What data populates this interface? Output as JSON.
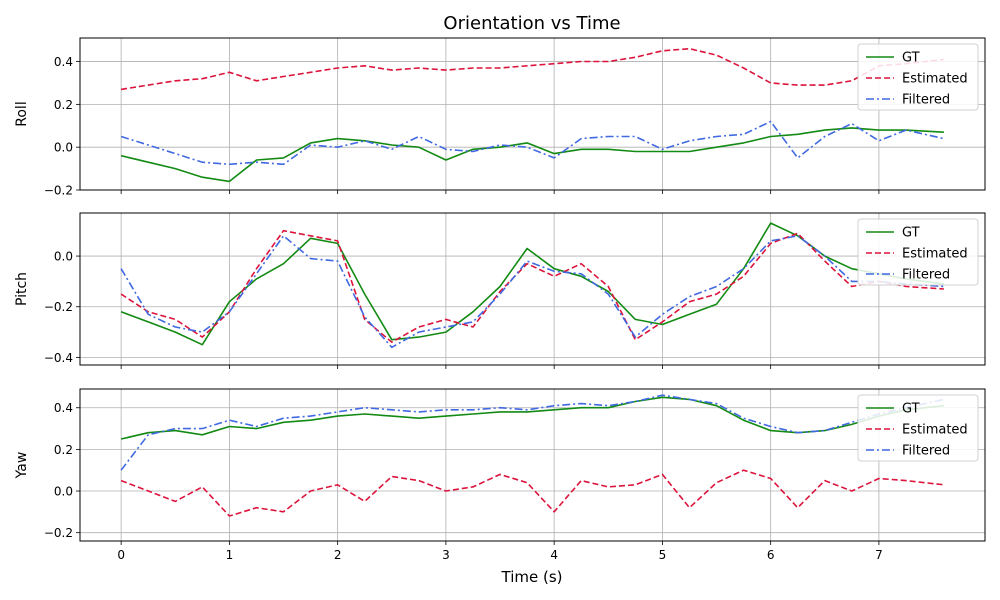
{
  "figure": {
    "title": "Orientation vs Time",
    "xlabel": "Time (s)",
    "legend_labels": [
      "GT",
      "Estimated",
      "Filtered"
    ]
  },
  "colors": {
    "GT": "#138a13",
    "Estimated": "#dc143c",
    "Filtered": "#4169e1"
  },
  "chart_data": [
    {
      "type": "line",
      "panel": "Roll",
      "ylabel": "Roll",
      "xlim": [
        -0.38,
        7.98
      ],
      "ylim": [
        -0.2,
        0.51
      ],
      "x_ticks": [
        0,
        1,
        2,
        3,
        4,
        5,
        6,
        7
      ],
      "x_tick_labels": [
        "0",
        "1",
        "2",
        "3",
        "4",
        "5",
        "6",
        "7"
      ],
      "y_ticks": [
        -0.2,
        0.0,
        0.2,
        0.4
      ],
      "y_tick_labels": [
        "−0.2",
        "0.0",
        "0.2",
        "0.4"
      ],
      "show_x_tick_labels": false,
      "grid": true,
      "legend_position": "upper-right",
      "x": [
        0.0,
        0.25,
        0.5,
        0.75,
        1.0,
        1.25,
        1.5,
        1.75,
        2.0,
        2.25,
        2.5,
        2.75,
        3.0,
        3.25,
        3.5,
        3.75,
        4.0,
        4.25,
        4.5,
        4.75,
        5.0,
        5.25,
        5.5,
        5.75,
        6.0,
        6.25,
        6.5,
        6.75,
        7.0,
        7.25,
        7.6
      ],
      "series": [
        {
          "name": "GT",
          "style": "solid",
          "values": [
            -0.04,
            -0.07,
            -0.1,
            -0.14,
            -0.16,
            -0.06,
            -0.05,
            0.02,
            0.04,
            0.03,
            0.01,
            0.0,
            -0.06,
            -0.01,
            0.0,
            0.02,
            -0.03,
            -0.01,
            -0.01,
            -0.02,
            -0.02,
            -0.02,
            0.0,
            0.02,
            0.05,
            0.06,
            0.08,
            0.09,
            0.08,
            0.08,
            0.07
          ]
        },
        {
          "name": "Estimated",
          "style": "dashed",
          "values": [
            0.27,
            0.29,
            0.31,
            0.32,
            0.35,
            0.31,
            0.33,
            0.35,
            0.37,
            0.38,
            0.36,
            0.37,
            0.36,
            0.37,
            0.37,
            0.38,
            0.39,
            0.4,
            0.4,
            0.42,
            0.45,
            0.46,
            0.43,
            0.37,
            0.3,
            0.29,
            0.29,
            0.31,
            0.38,
            0.39,
            0.41
          ]
        },
        {
          "name": "Filtered",
          "style": "dashdot",
          "values": [
            0.05,
            0.01,
            -0.03,
            -0.07,
            -0.08,
            -0.07,
            -0.08,
            0.01,
            0.0,
            0.03,
            -0.01,
            0.05,
            -0.01,
            -0.02,
            0.01,
            0.0,
            -0.05,
            0.04,
            0.05,
            0.05,
            -0.01,
            0.03,
            0.05,
            0.06,
            0.12,
            -0.05,
            0.05,
            0.11,
            0.03,
            0.08,
            0.04
          ]
        }
      ]
    },
    {
      "type": "line",
      "panel": "Pitch",
      "ylabel": "Pitch",
      "xlim": [
        -0.38,
        7.98
      ],
      "ylim": [
        -0.43,
        0.17
      ],
      "x_ticks": [
        0,
        1,
        2,
        3,
        4,
        5,
        6,
        7
      ],
      "x_tick_labels": [
        "0",
        "1",
        "2",
        "3",
        "4",
        "5",
        "6",
        "7"
      ],
      "y_ticks": [
        -0.4,
        -0.2,
        0.0
      ],
      "y_tick_labels": [
        "−0.4",
        "−0.2",
        "0.0"
      ],
      "show_x_tick_labels": false,
      "grid": true,
      "legend_position": "upper-right",
      "x": [
        0.0,
        0.25,
        0.5,
        0.75,
        1.0,
        1.25,
        1.5,
        1.75,
        2.0,
        2.25,
        2.5,
        2.75,
        3.0,
        3.25,
        3.5,
        3.75,
        4.0,
        4.25,
        4.5,
        4.75,
        5.0,
        5.25,
        5.5,
        5.75,
        6.0,
        6.25,
        6.5,
        6.75,
        7.0,
        7.25,
        7.6
      ],
      "series": [
        {
          "name": "GT",
          "style": "solid",
          "values": [
            -0.22,
            -0.26,
            -0.3,
            -0.35,
            -0.18,
            -0.09,
            -0.03,
            0.07,
            0.05,
            -0.15,
            -0.33,
            -0.32,
            -0.3,
            -0.22,
            -0.12,
            0.03,
            -0.05,
            -0.08,
            -0.14,
            -0.25,
            -0.27,
            -0.23,
            -0.19,
            -0.05,
            0.13,
            0.08,
            0.0,
            -0.05,
            -0.07,
            -0.09,
            -0.11
          ]
        },
        {
          "name": "Estimated",
          "style": "dashed",
          "values": [
            -0.15,
            -0.22,
            -0.25,
            -0.32,
            -0.22,
            -0.05,
            0.1,
            0.08,
            0.06,
            -0.25,
            -0.34,
            -0.28,
            -0.25,
            -0.28,
            -0.14,
            -0.03,
            -0.08,
            -0.03,
            -0.12,
            -0.33,
            -0.26,
            -0.18,
            -0.15,
            -0.08,
            0.05,
            0.09,
            -0.02,
            -0.12,
            -0.1,
            -0.12,
            -0.13
          ]
        },
        {
          "name": "Filtered",
          "style": "dashdot",
          "values": [
            -0.05,
            -0.23,
            -0.28,
            -0.3,
            -0.22,
            -0.07,
            0.08,
            -0.01,
            -0.02,
            -0.24,
            -0.36,
            -0.3,
            -0.28,
            -0.26,
            -0.15,
            -0.02,
            -0.06,
            -0.07,
            -0.15,
            -0.32,
            -0.23,
            -0.16,
            -0.12,
            -0.05,
            0.06,
            0.08,
            0.0,
            -0.1,
            -0.1,
            -0.11,
            -0.12
          ]
        }
      ]
    },
    {
      "type": "line",
      "panel": "Yaw",
      "ylabel": "Yaw",
      "xlim": [
        -0.38,
        7.98
      ],
      "ylim": [
        -0.24,
        0.49
      ],
      "x_ticks": [
        0,
        1,
        2,
        3,
        4,
        5,
        6,
        7
      ],
      "x_tick_labels": [
        "0",
        "1",
        "2",
        "3",
        "4",
        "5",
        "6",
        "7"
      ],
      "y_ticks": [
        -0.2,
        0.0,
        0.2,
        0.4
      ],
      "y_tick_labels": [
        "−0.2",
        "0.0",
        "0.2",
        "0.4"
      ],
      "show_x_tick_labels": true,
      "grid": true,
      "legend_position": "upper-right",
      "x": [
        0.0,
        0.25,
        0.5,
        0.75,
        1.0,
        1.25,
        1.5,
        1.75,
        2.0,
        2.25,
        2.5,
        2.75,
        3.0,
        3.25,
        3.5,
        3.75,
        4.0,
        4.25,
        4.5,
        4.75,
        5.0,
        5.25,
        5.5,
        5.75,
        6.0,
        6.25,
        6.5,
        6.75,
        7.0,
        7.25,
        7.6
      ],
      "series": [
        {
          "name": "GT",
          "style": "solid",
          "values": [
            0.25,
            0.28,
            0.29,
            0.27,
            0.31,
            0.3,
            0.33,
            0.34,
            0.36,
            0.37,
            0.36,
            0.35,
            0.36,
            0.37,
            0.38,
            0.38,
            0.39,
            0.4,
            0.4,
            0.43,
            0.45,
            0.44,
            0.41,
            0.34,
            0.29,
            0.28,
            0.29,
            0.32,
            0.36,
            0.39,
            0.41
          ]
        },
        {
          "name": "Estimated",
          "style": "dashed",
          "values": [
            0.05,
            0.0,
            -0.05,
            0.02,
            -0.12,
            -0.08,
            -0.1,
            0.0,
            0.03,
            -0.05,
            0.07,
            0.05,
            0.0,
            0.02,
            0.08,
            0.04,
            -0.1,
            0.05,
            0.02,
            0.03,
            0.08,
            -0.08,
            0.04,
            0.1,
            0.06,
            -0.08,
            0.05,
            0.0,
            0.06,
            0.05,
            0.03
          ]
        },
        {
          "name": "Filtered",
          "style": "dashdot",
          "values": [
            0.1,
            0.27,
            0.3,
            0.3,
            0.34,
            0.31,
            0.35,
            0.36,
            0.38,
            0.4,
            0.39,
            0.38,
            0.39,
            0.39,
            0.4,
            0.39,
            0.41,
            0.42,
            0.41,
            0.43,
            0.46,
            0.44,
            0.42,
            0.35,
            0.31,
            0.28,
            0.29,
            0.33,
            0.37,
            0.4,
            0.44
          ]
        }
      ]
    }
  ]
}
